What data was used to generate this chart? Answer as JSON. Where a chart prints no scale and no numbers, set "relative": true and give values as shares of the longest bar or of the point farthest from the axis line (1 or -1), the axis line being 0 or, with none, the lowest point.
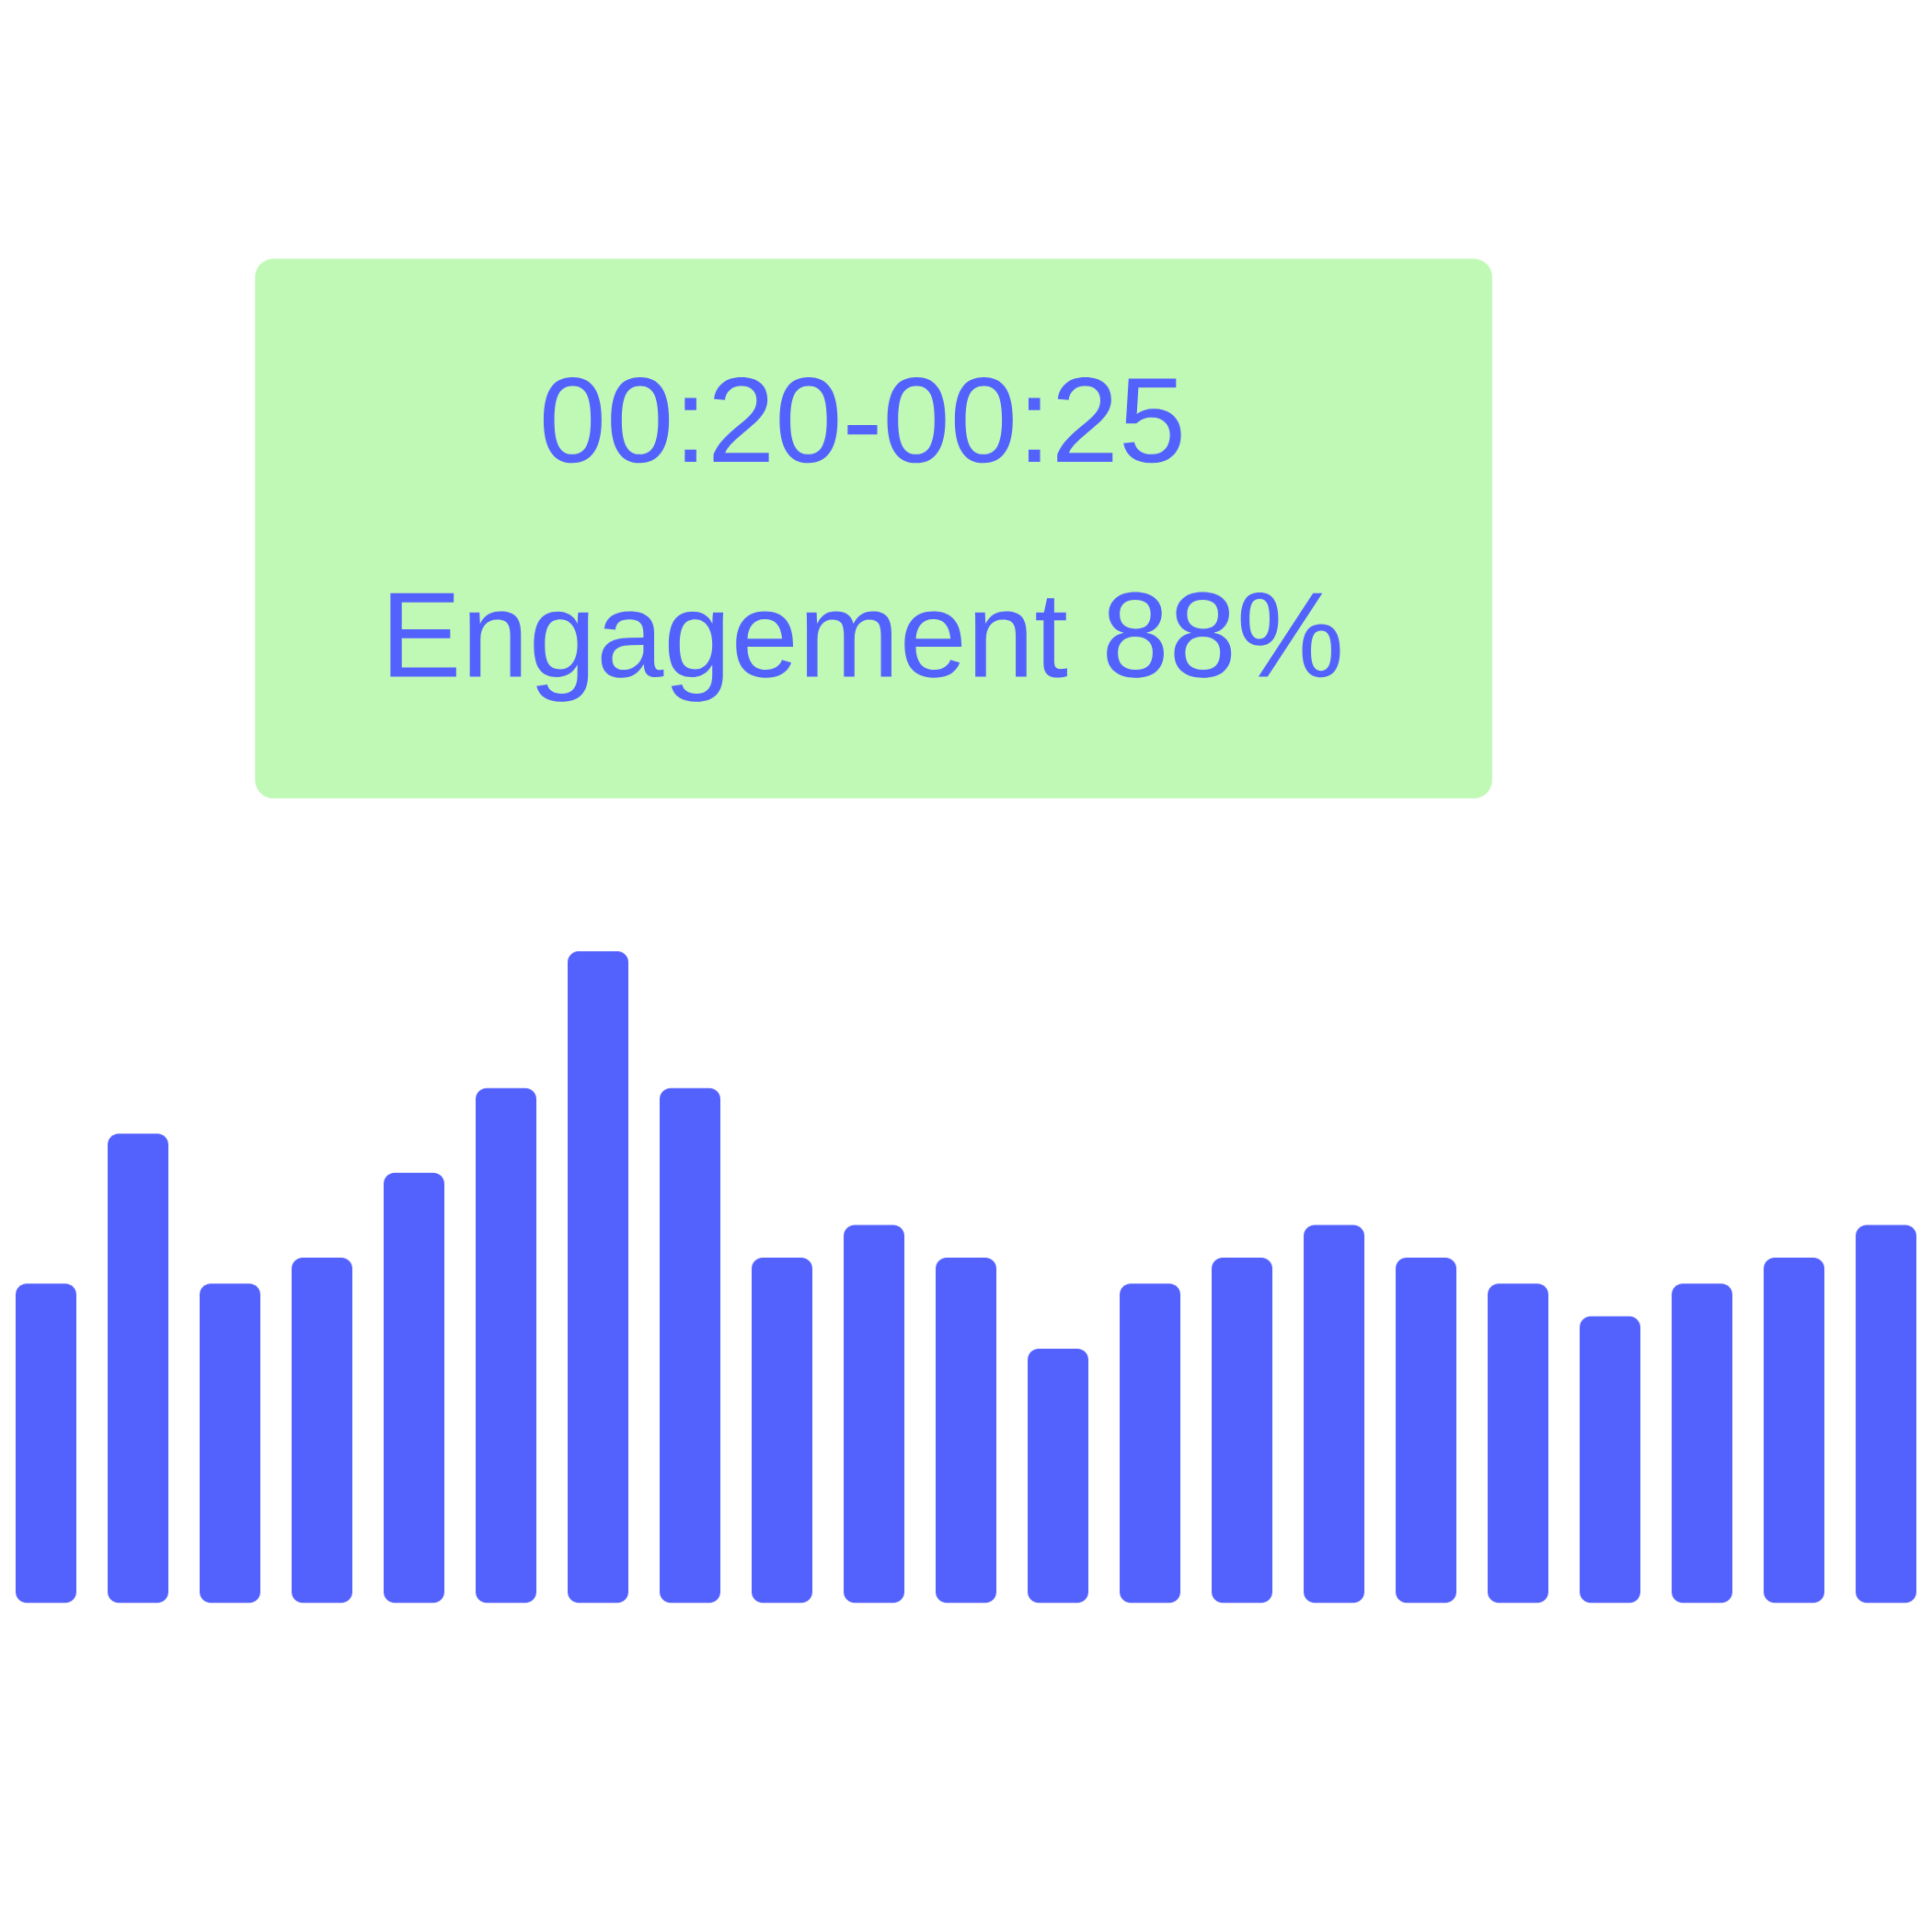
{
  "chart_data": {
    "type": "bar",
    "relative": true,
    "categories": [
      null,
      null,
      null,
      null,
      null,
      null,
      null,
      null,
      null,
      null,
      null,
      null,
      null,
      null,
      null,
      null,
      null,
      null,
      null,
      null,
      null
    ],
    "values": [
      0.49,
      0.72,
      0.49,
      0.53,
      0.66,
      0.79,
      1,
      0.79,
      0.53,
      0.58,
      0.53,
      0.39,
      0.49,
      0.53,
      0.58,
      0.53,
      0.49,
      0.44,
      0.49,
      0.53,
      0.58
    ],
    "color": "#5462fd",
    "annotations": [
      "00:20-00:25",
      "Engagement 88%"
    ]
  }
}
